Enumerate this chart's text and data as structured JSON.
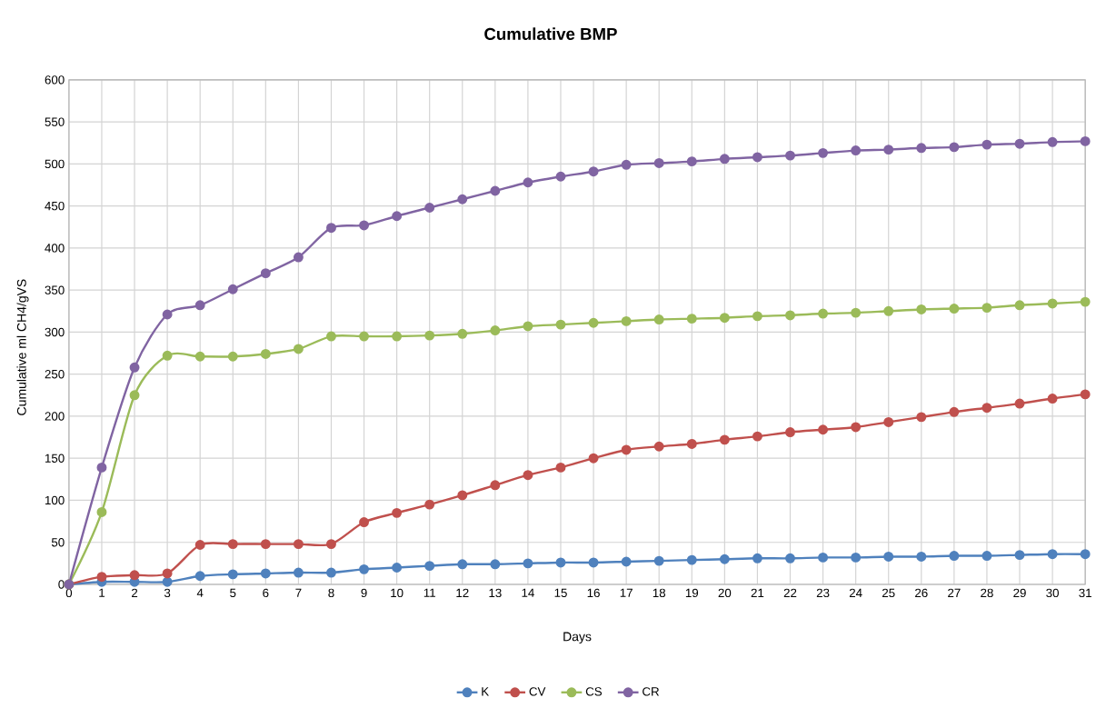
{
  "chart_data": {
    "type": "line",
    "title": "Cumulative BMP",
    "xlabel": "Days",
    "ylabel": "Cumulative ml CH4/gVS",
    "x": [
      0,
      1,
      2,
      3,
      4,
      5,
      6,
      7,
      8,
      9,
      10,
      11,
      12,
      13,
      14,
      15,
      16,
      17,
      18,
      19,
      20,
      21,
      22,
      23,
      24,
      25,
      26,
      27,
      28,
      29,
      30,
      31
    ],
    "xlim": [
      0,
      31
    ],
    "xticks": [
      0,
      1,
      2,
      3,
      4,
      5,
      6,
      7,
      8,
      9,
      10,
      11,
      12,
      13,
      14,
      15,
      16,
      17,
      18,
      19,
      20,
      21,
      22,
      23,
      24,
      25,
      26,
      27,
      28,
      29,
      30,
      31
    ],
    "ylim": [
      0,
      600
    ],
    "yticks": [
      0,
      50,
      100,
      150,
      200,
      250,
      300,
      350,
      400,
      450,
      500,
      550,
      600
    ],
    "grid": true,
    "legend": "bottom",
    "marker": "circle",
    "line_style": "solid",
    "series": [
      {
        "name": "K",
        "color": "#4f81bd",
        "values": [
          0,
          3,
          3,
          3,
          10,
          12,
          13,
          14,
          14,
          18,
          20,
          22,
          24,
          24,
          25,
          26,
          26,
          27,
          28,
          29,
          30,
          31,
          31,
          32,
          32,
          33,
          33,
          34,
          34,
          35,
          36,
          36
        ]
      },
      {
        "name": "CV",
        "color": "#c0504d",
        "values": [
          0,
          9,
          11,
          13,
          47,
          48,
          48,
          48,
          48,
          74,
          85,
          95,
          106,
          118,
          130,
          139,
          150,
          160,
          164,
          167,
          172,
          176,
          181,
          184,
          187,
          193,
          199,
          205,
          210,
          215,
          221,
          226
        ]
      },
      {
        "name": "CS",
        "color": "#9bbb59",
        "values": [
          0,
          86,
          225,
          272,
          271,
          271,
          274,
          280,
          295,
          295,
          295,
          296,
          298,
          302,
          307,
          309,
          311,
          313,
          315,
          316,
          317,
          319,
          320,
          322,
          323,
          325,
          327,
          328,
          329,
          332,
          334,
          336
        ]
      },
      {
        "name": "CR",
        "color": "#8064a2",
        "values": [
          0,
          139,
          258,
          321,
          332,
          351,
          370,
          389,
          424,
          427,
          438,
          448,
          458,
          468,
          478,
          485,
          491,
          499,
          501,
          503,
          506,
          508,
          510,
          513,
          516,
          517,
          519,
          520,
          523,
          524,
          526,
          527
        ]
      }
    ]
  }
}
